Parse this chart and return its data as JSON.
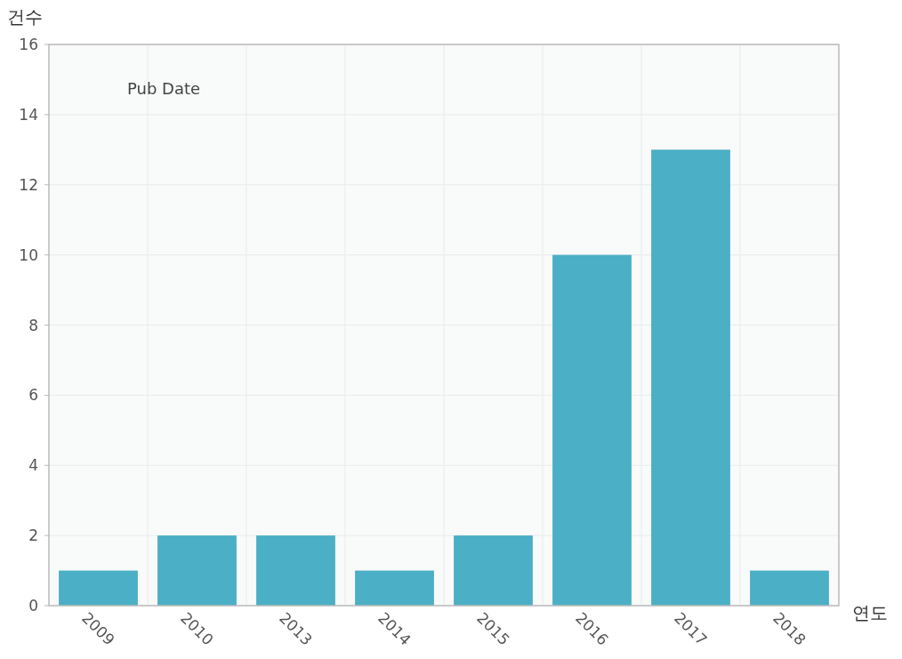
{
  "chart_data": {
    "type": "bar",
    "xlabel": "연도",
    "ylabel": "건수",
    "annotations": [
      "Pub Date"
    ],
    "categories": [
      "2009",
      "2010",
      "2013",
      "2014",
      "2015",
      "2016",
      "2017",
      "2018"
    ],
    "values": [
      1,
      2,
      2,
      1,
      2,
      10,
      13,
      1
    ],
    "color": "#4bafc6",
    "ylim": [
      0,
      16
    ],
    "yticks": [
      0,
      2,
      4,
      6,
      8,
      10,
      12,
      14,
      16
    ],
    "grid": true
  }
}
